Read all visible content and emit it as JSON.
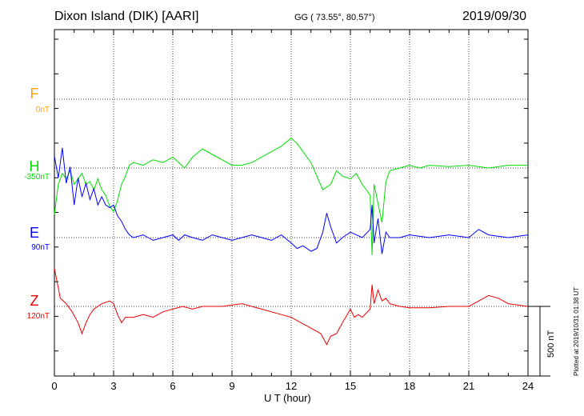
{
  "header": {
    "station": "Dixon Island (DIK)  [AARI]",
    "coords": "GG ( 73.55°,  80.57°)",
    "date": "2019/09/30"
  },
  "channels": [
    {
      "letter": "F",
      "baseline": "0nT",
      "color": "#ffa500"
    },
    {
      "letter": "H",
      "baseline": "-350nT",
      "color": "#00dd00"
    },
    {
      "letter": "E",
      "baseline": "90nT",
      "color": "#0000ff"
    },
    {
      "letter": "Z",
      "baseline": "120nT",
      "color": "#ee0000"
    }
  ],
  "scale_label": "500 nT",
  "plotted_label": "Plotted at 2019/10/31 01:38 UT",
  "chart_data": {
    "type": "line",
    "xlabel": "U T (hour)",
    "xlim": [
      0,
      24
    ],
    "xticks": [
      "0",
      "3",
      "6",
      "9",
      "12",
      "15",
      "18",
      "21",
      "24"
    ],
    "nT_per_panel_unit": 500,
    "series": [
      {
        "name": "H",
        "color": "#00dd00",
        "baseline_nT": -350,
        "points": [
          [
            0,
            -170
          ],
          [
            0.2,
            -60
          ],
          [
            0.4,
            -20
          ],
          [
            0.6,
            -40
          ],
          [
            0.8,
            -10
          ],
          [
            1.0,
            -60
          ],
          [
            1.2,
            -40
          ],
          [
            1.4,
            -20
          ],
          [
            1.6,
            -60
          ],
          [
            1.8,
            -50
          ],
          [
            2.0,
            -80
          ],
          [
            2.2,
            -40
          ],
          [
            2.4,
            -80
          ],
          [
            2.6,
            -100
          ],
          [
            2.8,
            -140
          ],
          [
            3.0,
            -160
          ],
          [
            3.2,
            -120
          ],
          [
            3.4,
            -60
          ],
          [
            3.6,
            -30
          ],
          [
            3.8,
            10
          ],
          [
            4.0,
            20
          ],
          [
            4.5,
            10
          ],
          [
            5.0,
            30
          ],
          [
            5.5,
            20
          ],
          [
            6.0,
            40
          ],
          [
            6.3,
            20
          ],
          [
            6.6,
            0
          ],
          [
            7.0,
            40
          ],
          [
            7.5,
            70
          ],
          [
            8.0,
            50
          ],
          [
            8.5,
            30
          ],
          [
            9.0,
            10
          ],
          [
            9.5,
            10
          ],
          [
            10.0,
            20
          ],
          [
            10.5,
            40
          ],
          [
            11.0,
            60
          ],
          [
            11.5,
            80
          ],
          [
            12.0,
            110
          ],
          [
            12.3,
            90
          ],
          [
            12.6,
            60
          ],
          [
            13.0,
            20
          ],
          [
            13.3,
            -30
          ],
          [
            13.6,
            -80
          ],
          [
            14.0,
            -60
          ],
          [
            14.3,
            -10
          ],
          [
            14.6,
            -30
          ],
          [
            15.0,
            -40
          ],
          [
            15.3,
            -20
          ],
          [
            15.6,
            -60
          ],
          [
            16.0,
            -100
          ],
          [
            16.1,
            -320
          ],
          [
            16.2,
            -60
          ],
          [
            16.4,
            -130
          ],
          [
            16.6,
            -200
          ],
          [
            16.8,
            -50
          ],
          [
            17.0,
            -10
          ],
          [
            17.5,
            0
          ],
          [
            18.0,
            10
          ],
          [
            18.5,
            0
          ],
          [
            19.0,
            10
          ],
          [
            20.0,
            5
          ],
          [
            21.0,
            10
          ],
          [
            22.0,
            0
          ],
          [
            23.0,
            10
          ],
          [
            24.0,
            10
          ]
        ]
      },
      {
        "name": "E",
        "color": "#0000ff",
        "baseline_nT": 90,
        "points": [
          [
            0,
            300
          ],
          [
            0.2,
            220
          ],
          [
            0.4,
            330
          ],
          [
            0.6,
            200
          ],
          [
            0.8,
            260
          ],
          [
            1.0,
            120
          ],
          [
            1.2,
            220
          ],
          [
            1.4,
            150
          ],
          [
            1.6,
            200
          ],
          [
            1.8,
            140
          ],
          [
            2.0,
            180
          ],
          [
            2.2,
            120
          ],
          [
            2.4,
            150
          ],
          [
            2.6,
            120
          ],
          [
            2.8,
            110
          ],
          [
            3.0,
            120
          ],
          [
            3.2,
            80
          ],
          [
            3.4,
            60
          ],
          [
            3.6,
            30
          ],
          [
            3.8,
            10
          ],
          [
            4.0,
            0
          ],
          [
            4.5,
            10
          ],
          [
            5.0,
            -10
          ],
          [
            5.5,
            0
          ],
          [
            6.0,
            10
          ],
          [
            6.3,
            -10
          ],
          [
            6.6,
            10
          ],
          [
            7.0,
            0
          ],
          [
            7.5,
            -10
          ],
          [
            8.0,
            10
          ],
          [
            8.5,
            0
          ],
          [
            9.0,
            -10
          ],
          [
            9.5,
            0
          ],
          [
            10.0,
            10
          ],
          [
            10.5,
            0
          ],
          [
            11.0,
            -10
          ],
          [
            11.5,
            10
          ],
          [
            12.0,
            -20
          ],
          [
            12.3,
            -40
          ],
          [
            12.6,
            -30
          ],
          [
            13.0,
            -50
          ],
          [
            13.3,
            -40
          ],
          [
            13.6,
            20
          ],
          [
            13.8,
            90
          ],
          [
            14.0,
            40
          ],
          [
            14.3,
            -20
          ],
          [
            14.6,
            0
          ],
          [
            15.0,
            20
          ],
          [
            15.3,
            10
          ],
          [
            15.6,
            0
          ],
          [
            16.0,
            30
          ],
          [
            16.1,
            120
          ],
          [
            16.2,
            -20
          ],
          [
            16.4,
            70
          ],
          [
            16.6,
            -60
          ],
          [
            16.8,
            20
          ],
          [
            17.0,
            0
          ],
          [
            17.5,
            0
          ],
          [
            18.0,
            10
          ],
          [
            19.0,
            0
          ],
          [
            20.0,
            10
          ],
          [
            21.0,
            0
          ],
          [
            21.5,
            30
          ],
          [
            22.0,
            10
          ],
          [
            23.0,
            0
          ],
          [
            24.0,
            10
          ]
        ]
      },
      {
        "name": "Z",
        "color": "#ee0000",
        "baseline_nT": 120,
        "points": [
          [
            0,
            140
          ],
          [
            0.3,
            30
          ],
          [
            0.6,
            10
          ],
          [
            0.9,
            -20
          ],
          [
            1.2,
            -60
          ],
          [
            1.4,
            -100
          ],
          [
            1.6,
            -60
          ],
          [
            1.8,
            -30
          ],
          [
            2.0,
            -10
          ],
          [
            2.4,
            10
          ],
          [
            2.8,
            20
          ],
          [
            3.0,
            10
          ],
          [
            3.2,
            -30
          ],
          [
            3.4,
            -60
          ],
          [
            3.6,
            -40
          ],
          [
            4.0,
            -40
          ],
          [
            4.5,
            -30
          ],
          [
            5.0,
            -40
          ],
          [
            5.5,
            -20
          ],
          [
            6.0,
            -10
          ],
          [
            6.5,
            0
          ],
          [
            7.0,
            -10
          ],
          [
            7.5,
            0
          ],
          [
            8.0,
            0
          ],
          [
            8.5,
            0
          ],
          [
            9.0,
            5
          ],
          [
            9.5,
            10
          ],
          [
            10.0,
            0
          ],
          [
            10.5,
            -10
          ],
          [
            11.0,
            -20
          ],
          [
            11.5,
            -30
          ],
          [
            12.0,
            -40
          ],
          [
            12.5,
            -60
          ],
          [
            13.0,
            -80
          ],
          [
            13.5,
            -100
          ],
          [
            13.8,
            -140
          ],
          [
            14.0,
            -110
          ],
          [
            14.3,
            -100
          ],
          [
            14.6,
            -60
          ],
          [
            15.0,
            -10
          ],
          [
            15.2,
            -40
          ],
          [
            15.4,
            -30
          ],
          [
            15.6,
            -40
          ],
          [
            16.0,
            -10
          ],
          [
            16.1,
            80
          ],
          [
            16.2,
            10
          ],
          [
            16.4,
            60
          ],
          [
            16.6,
            20
          ],
          [
            16.8,
            30
          ],
          [
            17.0,
            10
          ],
          [
            17.5,
            0
          ],
          [
            18.0,
            -5
          ],
          [
            19.0,
            -5
          ],
          [
            20.0,
            0
          ],
          [
            21.0,
            0
          ],
          [
            22.0,
            40
          ],
          [
            22.5,
            30
          ],
          [
            23.0,
            10
          ],
          [
            24.0,
            0
          ]
        ]
      }
    ]
  }
}
